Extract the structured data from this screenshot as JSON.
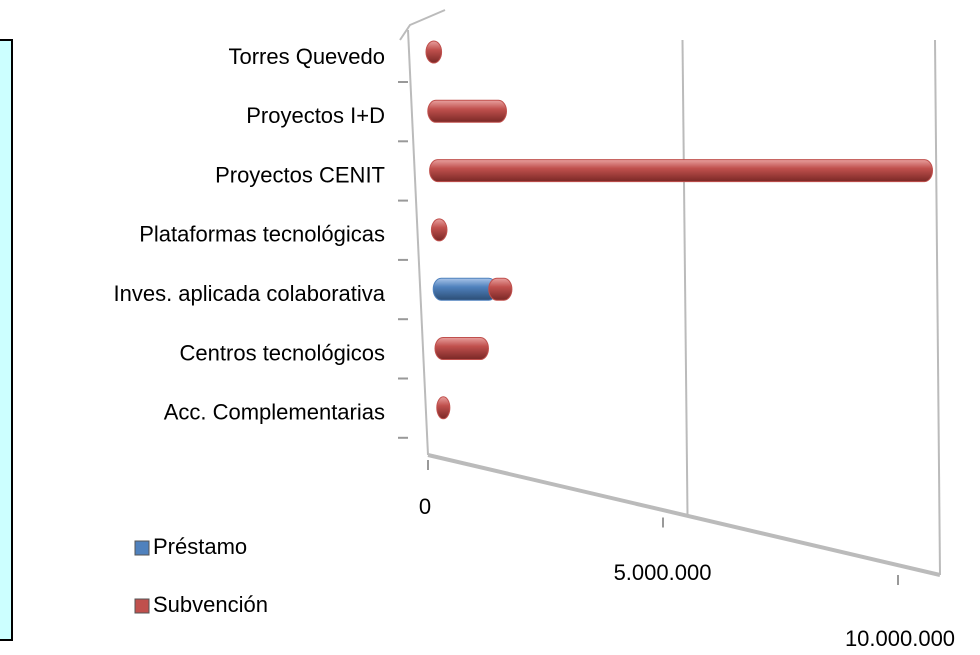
{
  "chart_data": {
    "type": "bar",
    "stacked": true,
    "orientation": "horizontal",
    "categories": [
      "Torres Quevedo",
      "Proyectos I+D",
      "Proyectos CENIT",
      "Plataformas tecnológicas",
      "Inves. aplicada colaborativa",
      "Centros tecnológicos",
      "Acc. Complementarias"
    ],
    "series": [
      {
        "name": "Préstamo",
        "color": "#4f81bd",
        "values": [
          0,
          0,
          0,
          0,
          1100000,
          0,
          0
        ]
      },
      {
        "name": "Subvención",
        "color": "#c0504d",
        "values": [
          150000,
          1400000,
          9800000,
          150000,
          300000,
          900000,
          100000
        ]
      }
    ],
    "xlim": [
      0,
      10000000
    ],
    "xticks": [
      {
        "value": 0,
        "label": "0"
      },
      {
        "value": 5000000,
        "label": "5.000.000"
      },
      {
        "value": 10000000,
        "label": "10.000.000"
      }
    ],
    "grid": true,
    "legend": "bottom-left"
  }
}
